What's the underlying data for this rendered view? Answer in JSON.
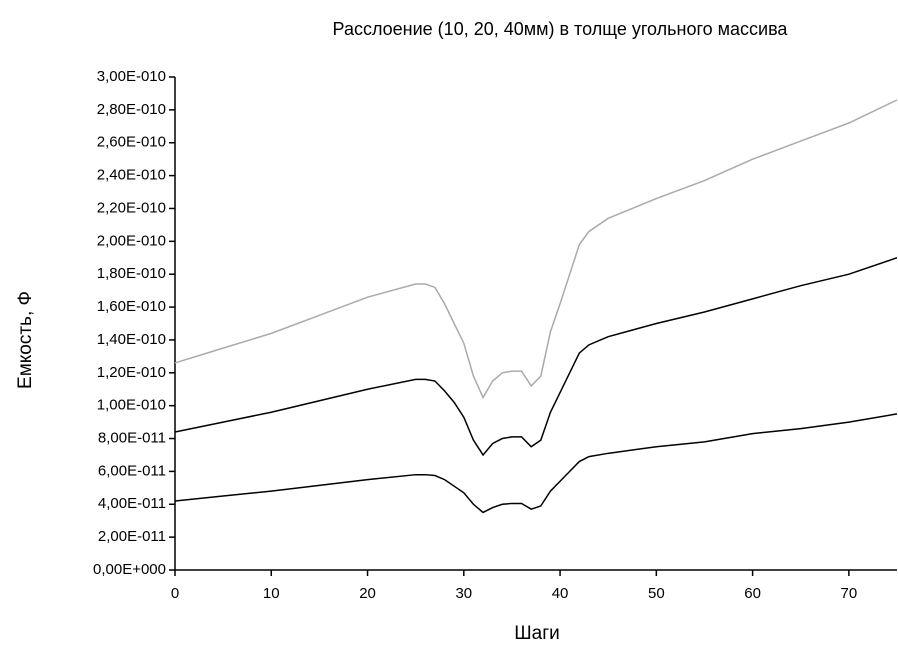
{
  "chart_data": {
    "type": "line",
    "title": "Расслоение (10, 20, 40мм) в толще угольного массива",
    "x_label": "Шаги",
    "y_label": "Емкость, Ф",
    "x": [
      0,
      5,
      10,
      15,
      20,
      25,
      26,
      27,
      28,
      29,
      30,
      31,
      32,
      33,
      34,
      35,
      36,
      37,
      38,
      39,
      40,
      41,
      42,
      43,
      45,
      50,
      55,
      60,
      65,
      70,
      75
    ],
    "series": [
      {
        "color": "#aaaaaa",
        "values": [
          1.26e-10,
          1.35e-10,
          1.44e-10,
          1.55e-10,
          1.66e-10,
          1.74e-10,
          1.74e-10,
          1.72e-10,
          1.62e-10,
          1.5e-10,
          1.38e-10,
          1.18e-10,
          1.05e-10,
          1.15e-10,
          1.2e-10,
          1.21e-10,
          1.21e-10,
          1.12e-10,
          1.18e-10,
          1.45e-10,
          1.62e-10,
          1.8e-10,
          1.98e-10,
          2.06e-10,
          2.14e-10,
          2.26e-10,
          2.37e-10,
          2.5e-10,
          2.61e-10,
          2.72e-10,
          2.86e-10
        ]
      },
      {
        "color": "#000000",
        "values": [
          8.4e-11,
          9e-11,
          9.6e-11,
          1.03e-10,
          1.1e-10,
          1.16e-10,
          1.16e-10,
          1.15e-10,
          1.09e-10,
          1.02e-10,
          9.3e-11,
          7.9e-11,
          7e-11,
          7.7e-11,
          8e-11,
          8.1e-11,
          8.1e-11,
          7.5e-11,
          7.9e-11,
          9.6e-11,
          1.08e-10,
          1.2e-10,
          1.32e-10,
          1.37e-10,
          1.42e-10,
          1.5e-10,
          1.57e-10,
          1.65e-10,
          1.73e-10,
          1.8e-10,
          1.9e-10
        ]
      },
      {
        "color": "#000000",
        "values": [
          4.2e-11,
          4.5e-11,
          4.8e-11,
          5.15e-11,
          5.5e-11,
          5.8e-11,
          5.8e-11,
          5.75e-11,
          5.5e-11,
          5.1e-11,
          4.7e-11,
          4e-11,
          3.5e-11,
          3.8e-11,
          4e-11,
          4.05e-11,
          4.05e-11,
          3.7e-11,
          3.9e-11,
          4.8e-11,
          5.4e-11,
          6e-11,
          6.6e-11,
          6.9e-11,
          7.1e-11,
          7.5e-11,
          7.8e-11,
          8.3e-11,
          8.6e-11,
          9e-11,
          9.5e-11
        ]
      }
    ],
    "xlim": [
      0,
      75
    ],
    "xticks": [
      0,
      10,
      20,
      30,
      40,
      50,
      60,
      70
    ],
    "ylim": [
      0,
      3e-10
    ],
    "yticks": [
      {
        "value": 0,
        "label": "0,00E+000"
      },
      {
        "value": 2e-11,
        "label": "2,00E-011"
      },
      {
        "value": 4e-11,
        "label": "4,00E-011"
      },
      {
        "value": 6e-11,
        "label": "6,00E-011"
      },
      {
        "value": 8e-11,
        "label": "8,00E-011"
      },
      {
        "value": 1e-10,
        "label": "1,00E-010"
      },
      {
        "value": 1.2e-10,
        "label": "1,20E-010"
      },
      {
        "value": 1.4e-10,
        "label": "1,40E-010"
      },
      {
        "value": 1.6e-10,
        "label": "1,60E-010"
      },
      {
        "value": 1.8e-10,
        "label": "1,80E-010"
      },
      {
        "value": 2e-10,
        "label": "2,00E-010"
      },
      {
        "value": 2.2e-10,
        "label": "2,20E-010"
      },
      {
        "value": 2.4e-10,
        "label": "2,40E-010"
      },
      {
        "value": 2.6e-10,
        "label": "2,60E-010"
      },
      {
        "value": 2.8e-10,
        "label": "2,80E-010"
      },
      {
        "value": 3e-10,
        "label": "3,00E-010"
      }
    ]
  }
}
